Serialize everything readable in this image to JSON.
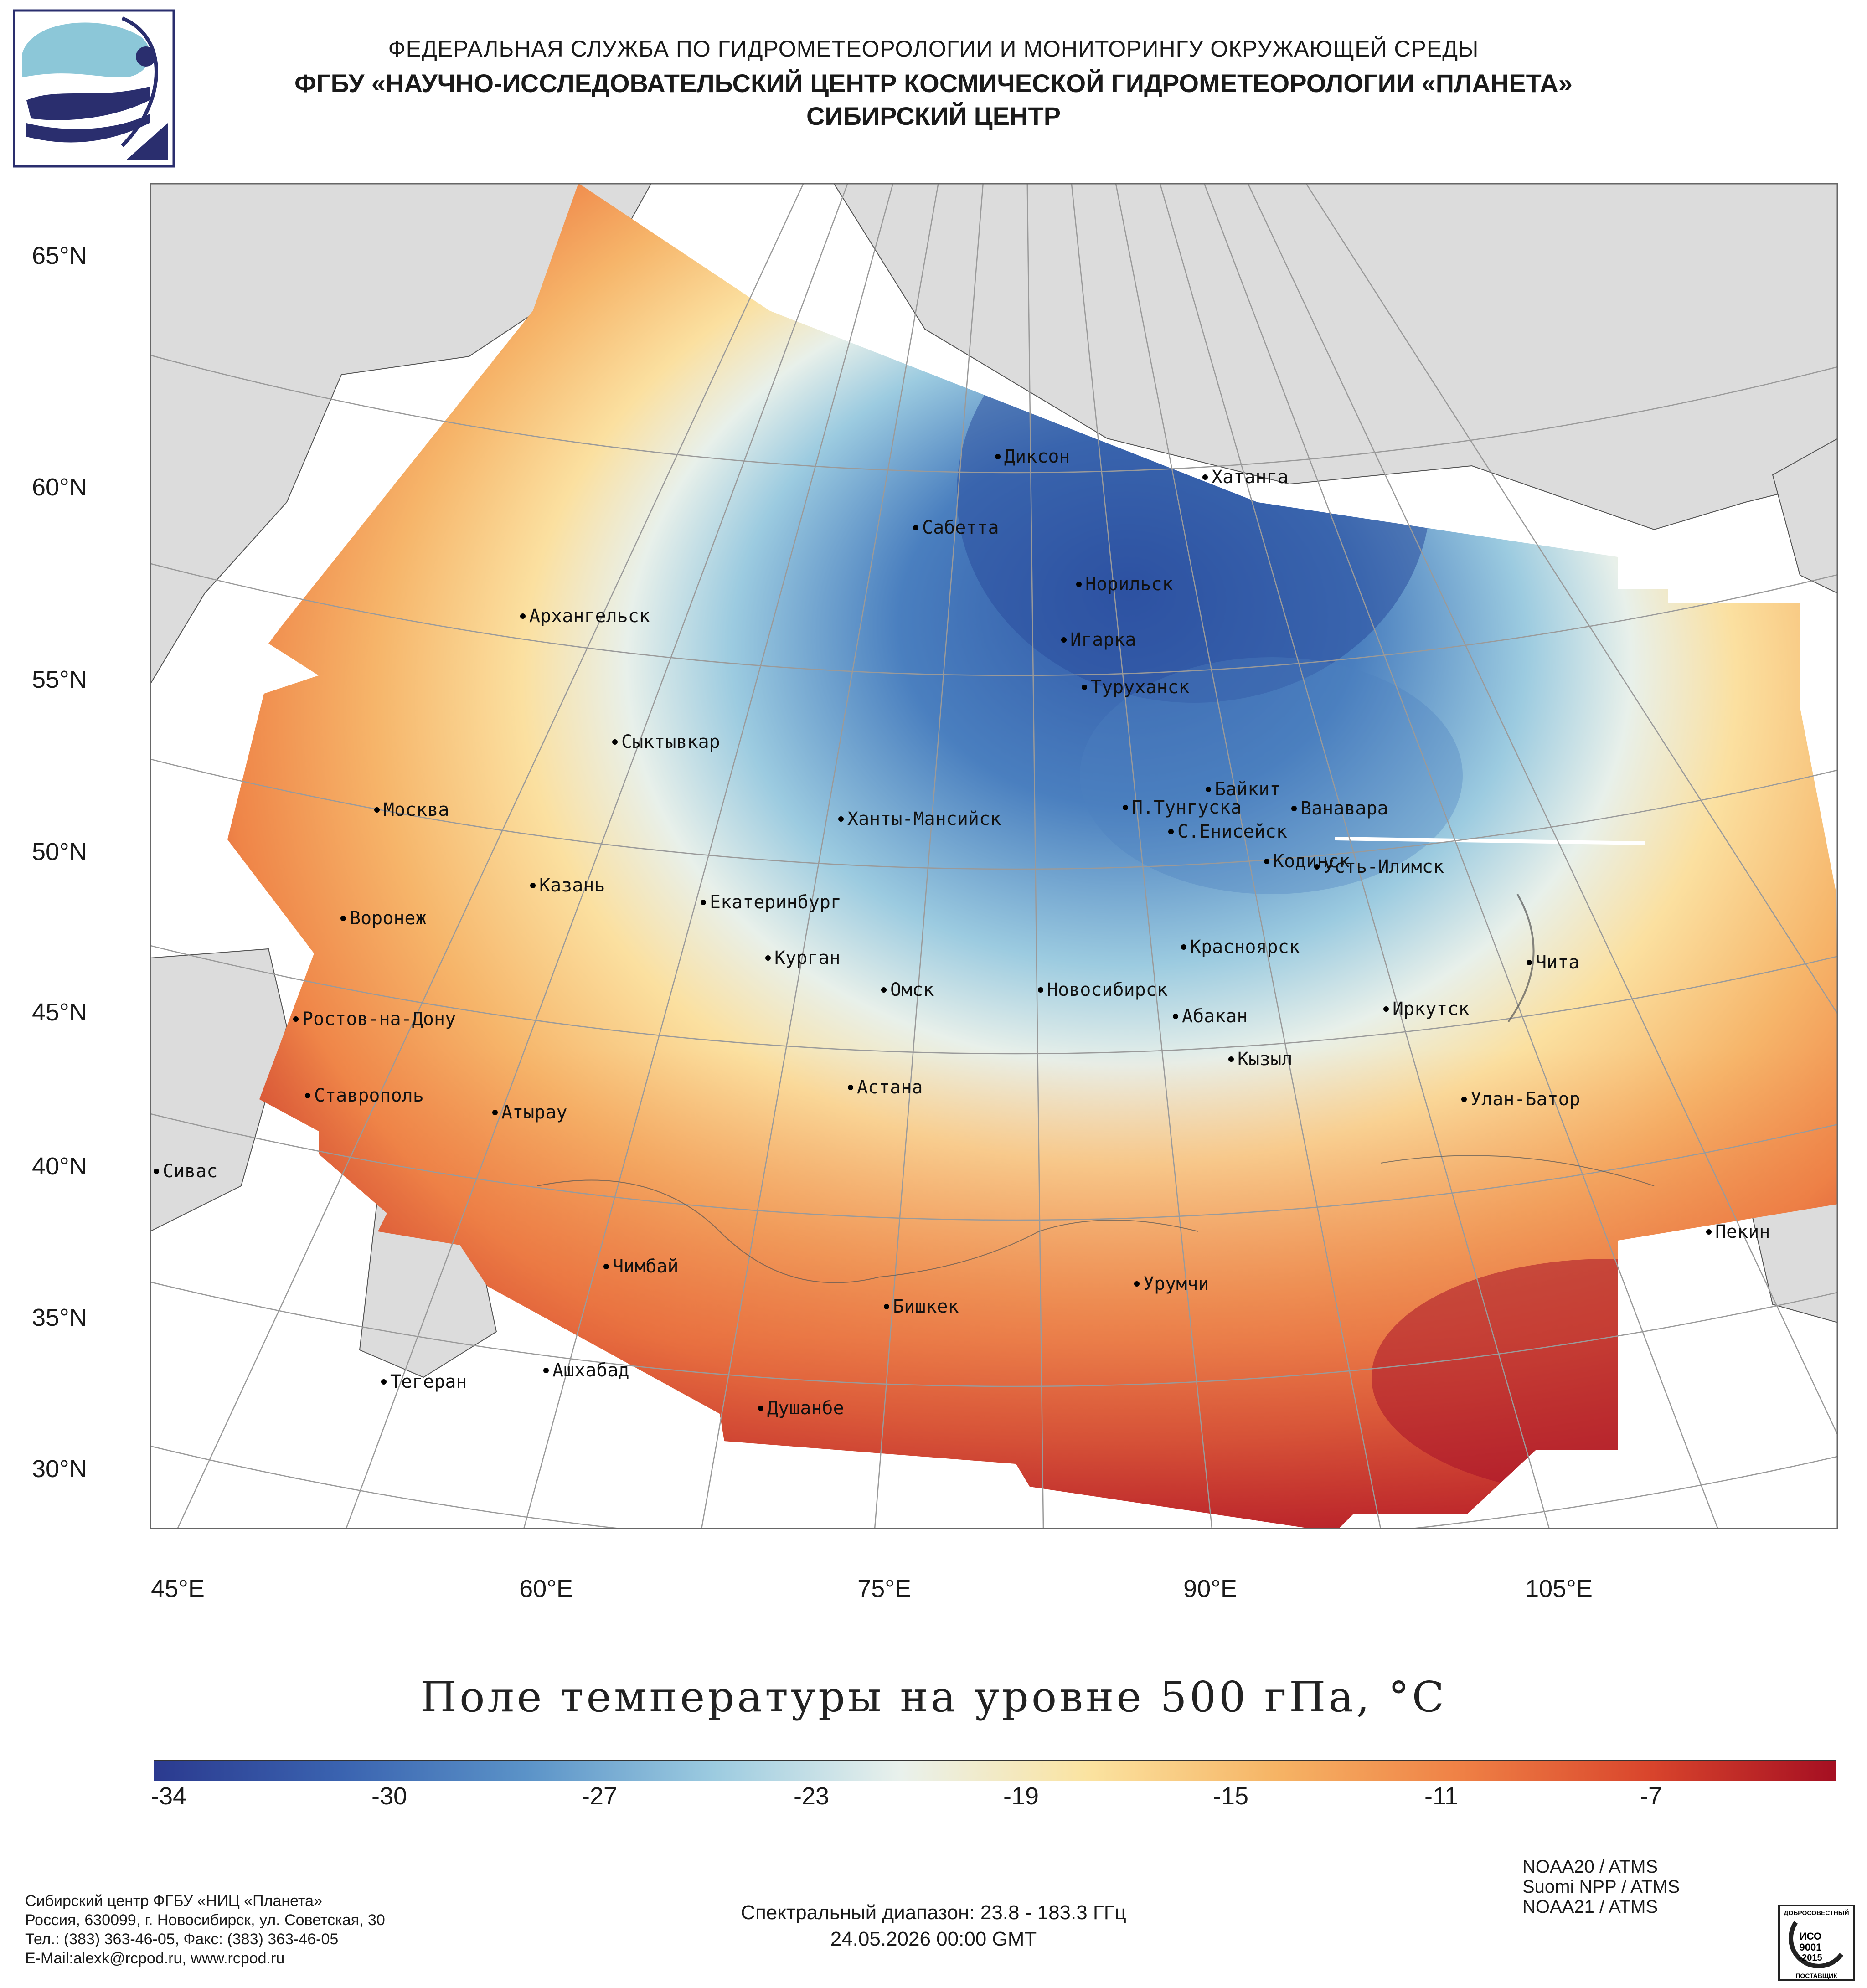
{
  "header": {
    "line1": "ФЕДЕРАЛЬНАЯ СЛУЖБА ПО ГИДРОМЕТЕОРОЛОГИИ И МОНИТОРИНГУ ОКРУЖАЮЩЕЙ СРЕДЫ",
    "line2": "ФГБУ «НАУЧНО-ИССЛЕДОВАТЕЛЬСКИЙ ЦЕНТР КОСМИЧЕСКОЙ ГИДРОМЕТЕОРОЛОГИИ «ПЛАНЕТА»",
    "line3": "СИБИРСКИЙ ЦЕНТР"
  },
  "map": {
    "lat_labels": [
      "65°N",
      "60°N",
      "55°N",
      "50°N",
      "45°N",
      "40°N",
      "35°N",
      "30°N"
    ],
    "lon_labels": [
      "45°E",
      "60°E",
      "75°E",
      "90°E",
      "105°E"
    ],
    "cities": [
      "Диксон",
      "Хатанга",
      "Сабетта",
      "Норильск",
      "Архангельск",
      "Игарка",
      "Туруханск",
      "Сыктывкар",
      "Байкит",
      "Москва",
      "Ханты-Мансийск",
      "П.Тунгуска",
      "Ванавара",
      "С.Енисейск",
      "Кодинск",
      "Усть-Илимск",
      "Казань",
      "Екатеринбург",
      "Воронеж",
      "Красноярск",
      "Курган",
      "Чита",
      "Омск",
      "Новосибирск",
      "Иркутск",
      "Абакан",
      "Ростов-на-Дону",
      "Кызыл",
      "Астана",
      "Ставрополь",
      "Улан-Батор",
      "Атырау",
      "Сивас",
      "Пекин",
      "Чимбай",
      "Урумчи",
      "Бишкек",
      "Ашхабад",
      "Тегеран",
      "Душанбе"
    ],
    "colors": {
      "land": "#dcdcdc",
      "ocean": "#ffffff",
      "grid": "#9a9a9a"
    }
  },
  "title": "Поле температуры на уровне 500 гПа, °C",
  "colorbar": {
    "ticks": [
      "-34",
      "-30",
      "-27",
      "-23",
      "-19",
      "-15",
      "-11",
      "-7"
    ],
    "colors": [
      "#2b3a8f",
      "#3a63b0",
      "#5b93c8",
      "#9ccbe0",
      "#e9f1ec",
      "#fbe3a0",
      "#f6b465",
      "#ef8045",
      "#d9452c",
      "#a50f22"
    ]
  },
  "footer": {
    "org": "Сибирский центр ФГБУ «НИЦ «Планета»",
    "address": "Россия, 630099, г. Новосибирск, ул. Советская, 30",
    "phone": "Тел.: (383) 363-46-05, Факс: (383) 363-46-05",
    "email": "E-Mail:alexk@rcpod.ru, www.rcpod.ru",
    "range": "Спектральный диапазон: 23.8 - 183.3 ГГц",
    "datetime": "24.05.2026 00:00 GMT",
    "sat1": "NOAA20 / ATMS",
    "sat2": "Suomi NPP / ATMS",
    "sat3": "NOAA21 / ATMS",
    "iso_text": [
      "ДОБРОСОВЕСТНЫЙ",
      "ИСО",
      "9001",
      "-2015",
      "ПОСТАВЩИК"
    ]
  }
}
